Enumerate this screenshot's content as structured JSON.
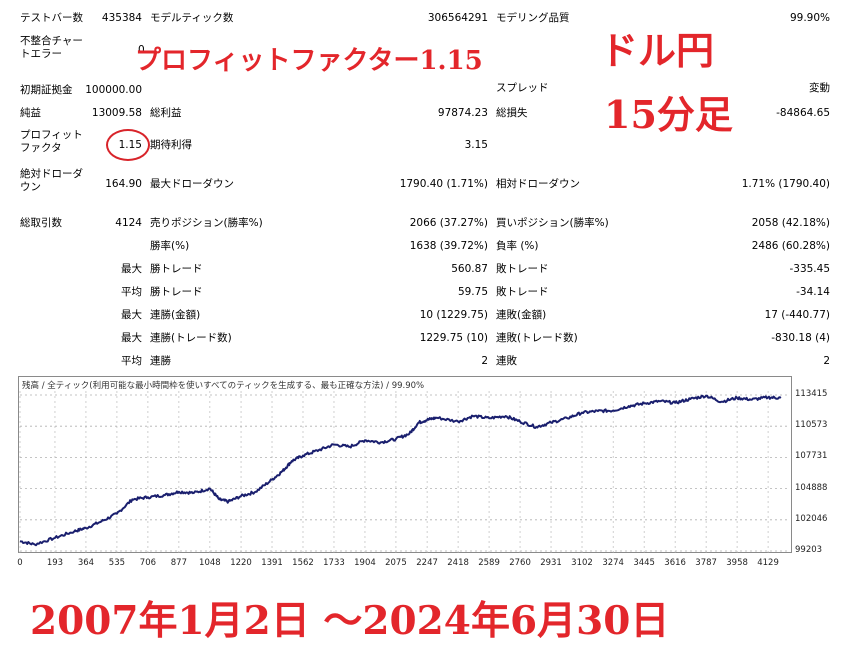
{
  "stats": {
    "bars_label": "テストバー数",
    "bars_value": "435384",
    "ticks_label": "モデルティック数",
    "ticks_value": "306564291",
    "quality_label": "モデリング品質",
    "quality_value": "99.90%",
    "mismatch_label": "不整合チャートエラー",
    "mismatch_value": "0",
    "deposit_label": "初期証拠金",
    "deposit_value": "100000.00",
    "spread_label": "スプレッド",
    "spread_value": "変動",
    "net_label": "純益",
    "net_value": "13009.58",
    "gross_profit_label": "総利益",
    "gross_profit_value": "97874.23",
    "gross_loss_label": "総損失",
    "gross_loss_value": "-84864.65",
    "pf_label": "プロフィットファクタ",
    "pf_value": "1.15",
    "expected_label": "期待利得",
    "expected_value": "3.15",
    "abs_dd_label": "絶対ドローダウン",
    "abs_dd_value": "164.90",
    "max_dd_label": "最大ドローダウン",
    "max_dd_value": "1790.40 (1.71%)",
    "rel_dd_label": "相対ドローダウン",
    "rel_dd_value": "1.71% (1790.40)",
    "total_trades_label": "総取引数",
    "total_trades_value": "4124",
    "short_label": "売りポジション(勝率%)",
    "short_value": "2066 (37.27%)",
    "long_label": "買いポジション(勝率%)",
    "long_value": "2058 (42.18%)",
    "win_label": "勝率(%)",
    "win_value": "1638 (39.72%)",
    "loss_label": "負率 (%)",
    "loss_value": "2486 (60.28%)",
    "max_label": "最大",
    "avg_label": "平均",
    "win_trade_label": "勝トレード",
    "loss_trade_label": "敗トレード",
    "max_win": "560.87",
    "max_loss": "-335.45",
    "avg_win": "59.75",
    "avg_loss": "-34.14",
    "cons_wins_money_label": "連勝(金額)",
    "cons_wins_money_value": "10 (1229.75)",
    "cons_loss_money_label": "連敗(金額)",
    "cons_loss_money_value": "17 (-440.77)",
    "cons_wins_trades_label": "連勝(トレード数)",
    "cons_wins_trades_value": "1229.75 (10)",
    "cons_loss_trades_label": "連敗(トレード数)",
    "cons_loss_trades_value": "-830.18 (4)",
    "avg_cons_wins_label": "連勝",
    "avg_cons_wins_value": "2",
    "avg_cons_loss_label": "連敗",
    "avg_cons_loss_value": "2"
  },
  "overlay": {
    "pf_text": "プロフィットファクター1.15",
    "pair_text": "ドル円",
    "timeframe_text": "15分足",
    "period_text": "2007年1月2日 ～2024年6月30日"
  },
  "colors": {
    "overlay_red": "#e3262b",
    "line": "#1a1f6e",
    "grid": "#b0b0b0"
  },
  "chart_data": {
    "type": "line",
    "title": "残高 / 全ティック(利用可能な最小時間枠を使いすべてのティックを生成する、最も正確な方法) / 99.90%",
    "x_ticks": [
      "0",
      "193",
      "364",
      "535",
      "706",
      "877",
      "1048",
      "1220",
      "1391",
      "1562",
      "1733",
      "1904",
      "2075",
      "2247",
      "2418",
      "2589",
      "2760",
      "2931",
      "3102",
      "3274",
      "3445",
      "3616",
      "3787",
      "3958",
      "4129"
    ],
    "y_ticks": [
      "113415",
      "110573",
      "107731",
      "104888",
      "102046",
      "99203"
    ],
    "ylim": [
      99203,
      113415
    ],
    "xlim": [
      0,
      4250
    ],
    "series": [
      {
        "x": [
          0,
          80,
          193,
          300,
          364,
          450,
          535,
          620,
          706,
          800,
          877,
          960,
          1048,
          1100,
          1150,
          1220,
          1300,
          1391,
          1450,
          1500,
          1562,
          1650,
          1733,
          1820,
          1904,
          1990,
          2075,
          2150,
          2200,
          2247,
          2300,
          2418,
          2500,
          2589,
          2680,
          2760,
          2850,
          2931,
          3020,
          3102,
          3190,
          3274,
          3360,
          3445,
          3530,
          3616,
          3700,
          3787,
          3870,
          3958,
          4040,
          4129,
          4200
        ],
        "values": [
          100100,
          99800,
          100400,
          101000,
          101300,
          101900,
          102600,
          103900,
          104100,
          104300,
          104600,
          104500,
          104900,
          103900,
          103700,
          104200,
          104600,
          105700,
          106500,
          107400,
          107900,
          108400,
          108900,
          108700,
          109300,
          109100,
          109400,
          109900,
          110900,
          111150,
          111350,
          111000,
          111500,
          111300,
          111500,
          111000,
          110500,
          110900,
          111300,
          111800,
          111950,
          112000,
          112400,
          112650,
          112850,
          112700,
          113050,
          113350,
          112800,
          113150,
          113000,
          113200,
          113150
        ]
      }
    ]
  }
}
